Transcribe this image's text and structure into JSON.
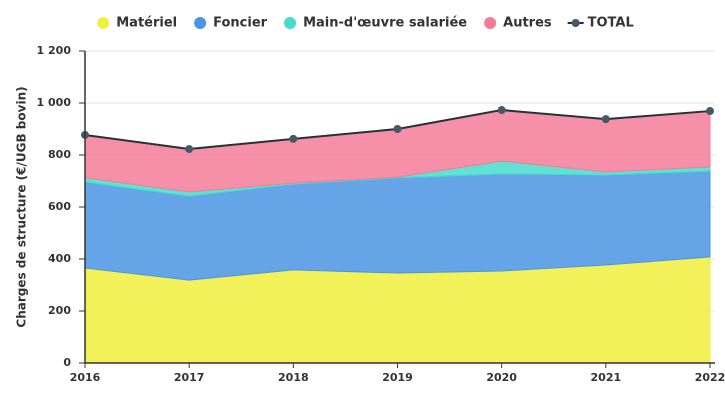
{
  "chart_data": {
    "type": "stacked_area",
    "y_label": "Charges de structure (€/UGB bovin)",
    "categories": [
      "2016",
      "2017",
      "2018",
      "2019",
      "2020",
      "2021",
      "2022"
    ],
    "series": [
      {
        "name": "Matériel",
        "color": "#f0ef3c",
        "values": [
          365,
          319,
          358,
          346,
          354,
          377,
          408
        ]
      },
      {
        "name": "Foncier",
        "color": "#4a95e3",
        "values": [
          331,
          323,
          330,
          366,
          373,
          346,
          330
        ]
      },
      {
        "name": "Main-d'œuvre salariée",
        "color": "#45dccb",
        "values": [
          16,
          16,
          4,
          3,
          50,
          12,
          16
        ]
      },
      {
        "name": "Autres",
        "color": "#f57b99",
        "values": [
          165,
          165,
          170,
          185,
          196,
          203,
          215
        ]
      },
      {
        "name": "TOTAL",
        "color": "#455a64",
        "type": "line",
        "values": [
          877,
          823,
          862,
          900,
          973,
          938,
          969
        ]
      }
    ],
    "ylim": [
      0,
      1200
    ],
    "yticks": [
      0,
      200,
      400,
      600,
      800,
      {
        "value": 1000,
        "label": "1 000"
      },
      {
        "value": 1200,
        "label": "1 200"
      }
    ],
    "grid": true
  }
}
